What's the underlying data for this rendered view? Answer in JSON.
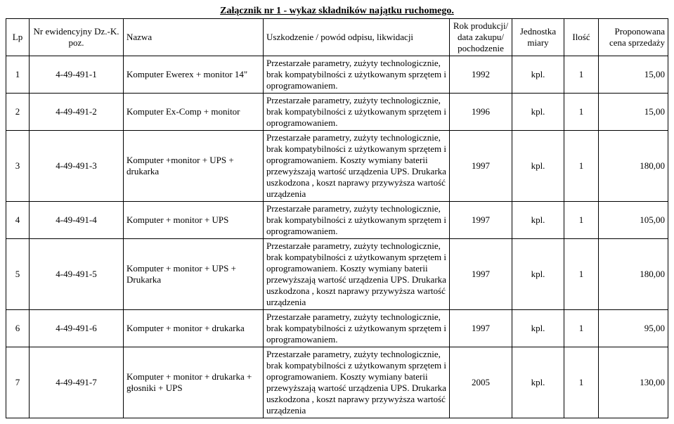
{
  "title": "Załącznik nr 1 - wykaz składników najątku ruchomego.",
  "headers": {
    "lp": "Lp",
    "nr": "Nr ewidencyjny Dz.-K. poz.",
    "name": "Nazwa",
    "desc": "Uszkodzenie / powód odpisu, likwidacji",
    "year": "Rok produkcji/ data zakupu/ pochodzenie",
    "unit": "Jednostka miary",
    "qty": "Ilość",
    "price": "Proponowana cena sprzedaży"
  },
  "rows": [
    {
      "lp": "1",
      "nr": "4-49-491-1",
      "name": "Komputer Ewerex + monitor 14\"",
      "desc": "Przestarzałe parametry, zużyty technologicznie, brak kompatybilności z użytkowanym sprzętem i oprogramowaniem.",
      "year": "1992",
      "unit": "kpl.",
      "qty": "1",
      "price": "15,00"
    },
    {
      "lp": "2",
      "nr": "4-49-491-2",
      "name": "Komputer Ex-Comp + monitor",
      "desc": "Przestarzałe parametry, zużyty technologicznie, brak kompatybilności z użytkowanym sprzętem i oprogramowaniem.",
      "year": "1996",
      "unit": "kpl.",
      "qty": "1",
      "price": "15,00"
    },
    {
      "lp": "3",
      "nr": "4-49-491-3",
      "name": "Komputer +monitor + UPS + drukarka",
      "desc": "Przestarzałe parametry, zużyty technologicznie, brak kompatybilności z użytkowanym sprzętem i oprogramowaniem. Koszty wymiany baterii przewyższają wartość urządzenia UPS. Drukarka uszkodzona , koszt naprawy przywyższa wartość urządzenia",
      "year": "1997",
      "unit": "kpl.",
      "qty": "1",
      "price": "180,00"
    },
    {
      "lp": "4",
      "nr": "4-49-491-4",
      "name": "Komputer + monitor + UPS",
      "desc": "Przestarzałe parametry, zużyty technologicznie, brak kompatybilności z użytkowanym sprzętem i oprogramowaniem.",
      "year": "1997",
      "unit": "kpl.",
      "qty": "1",
      "price": "105,00"
    },
    {
      "lp": "5",
      "nr": "4-49-491-5",
      "name": "Komputer + monitor + UPS + Drukarka",
      "desc": "Przestarzałe parametry, zużyty technologicznie, brak kompatybilności z użytkowanym sprzętem i oprogramowaniem. Koszty wymiany baterii przewyższają wartość urządzenia UPS. Drukarka uszkodzona , koszt naprawy przywyższa wartość urządzenia",
      "year": "1997",
      "unit": "kpl.",
      "qty": "1",
      "price": "180,00"
    },
    {
      "lp": "6",
      "nr": "4-49-491-6",
      "name": "Komputer + monitor + drukarka",
      "desc": "Przestarzałe parametry, zużyty technologicznie, brak kompatybilności z użytkowanym sprzętem i oprogramowaniem.",
      "year": "1997",
      "unit": "kpl.",
      "qty": "1",
      "price": "95,00"
    },
    {
      "lp": "7",
      "nr": "4-49-491-7",
      "name": "Komputer + monitor + drukarka + głosniki + UPS",
      "desc": "Przestarzałe parametry, zużyty technologicznie, brak kompatybilności z użytkowanym sprzętem i oprogramowaniem. Koszty wymiany baterii przewyższają wartość urządzenia UPS. Drukarka uszkodzona , koszt naprawy przywyższa wartość urządzenia",
      "year": "2005",
      "unit": "kpl.",
      "qty": "1",
      "price": "130,00"
    }
  ]
}
